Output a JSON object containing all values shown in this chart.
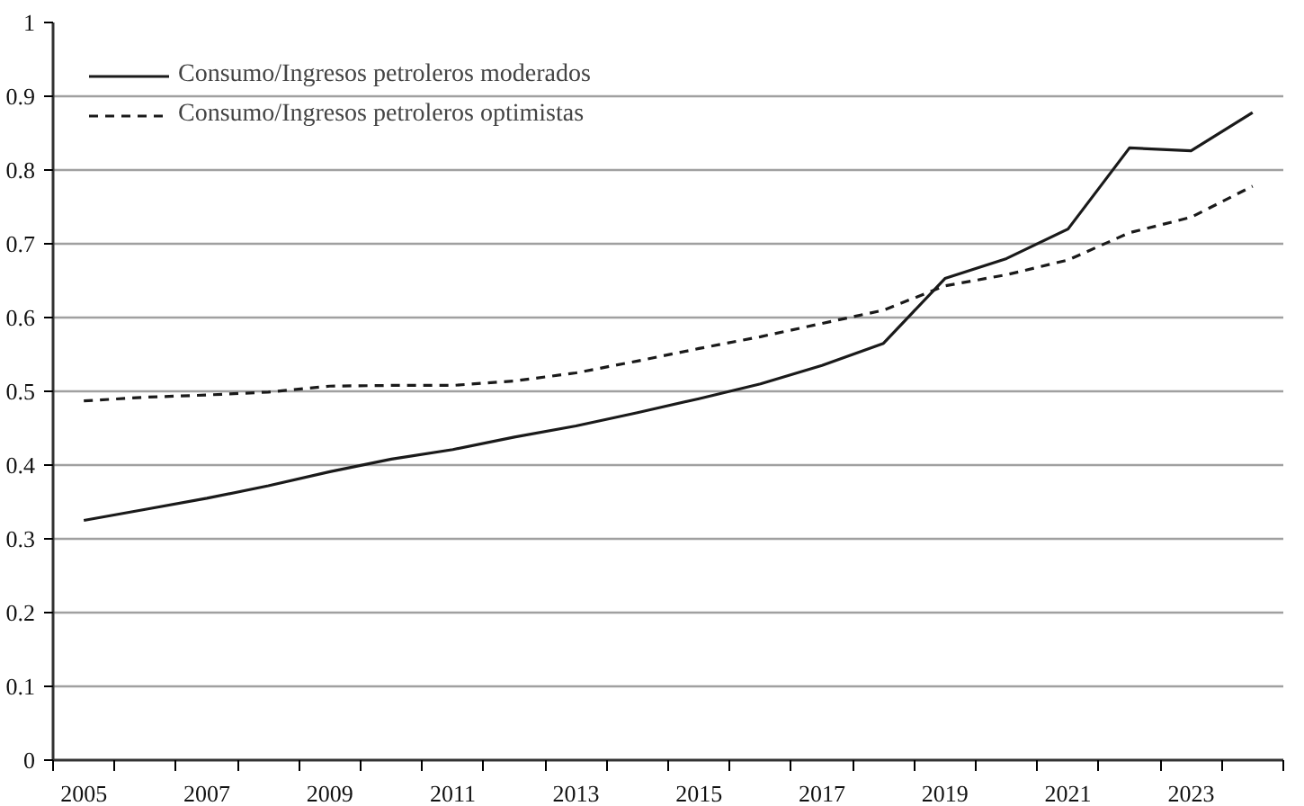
{
  "chart_data": {
    "type": "line",
    "categories": [
      "2005",
      null,
      "2007",
      null,
      "2009",
      null,
      "2011",
      null,
      "2013",
      null,
      "2015",
      null,
      "2017",
      null,
      "2019",
      null,
      "2021",
      null,
      "2023",
      null
    ],
    "series": [
      {
        "name": "Consumo/Ingresos petroleros moderados",
        "color": "#1a1a1a",
        "line_style": "solid",
        "values": [
          0.325,
          0.34,
          0.355,
          0.372,
          0.391,
          0.408,
          0.421,
          0.438,
          0.453,
          0.471,
          0.49,
          0.51,
          0.535,
          0.565,
          0.653,
          0.68,
          0.72,
          0.83,
          0.826,
          0.878
        ]
      },
      {
        "name": "Consumo/Ingresos petroleros optimistas",
        "color": "#1a1a1a",
        "line_style": "dashed",
        "values": [
          0.487,
          0.492,
          0.495,
          0.499,
          0.507,
          0.508,
          0.508,
          0.514,
          0.525,
          0.541,
          0.558,
          0.574,
          0.592,
          0.61,
          0.643,
          0.658,
          0.678,
          0.715,
          0.736,
          0.778
        ]
      }
    ],
    "ylim": [
      0,
      1
    ],
    "yticks": [
      0,
      0.1,
      0.2,
      0.3,
      0.4,
      0.5,
      0.6,
      0.7,
      0.8,
      0.9,
      1
    ],
    "grid": "y",
    "legend": "top left"
  }
}
